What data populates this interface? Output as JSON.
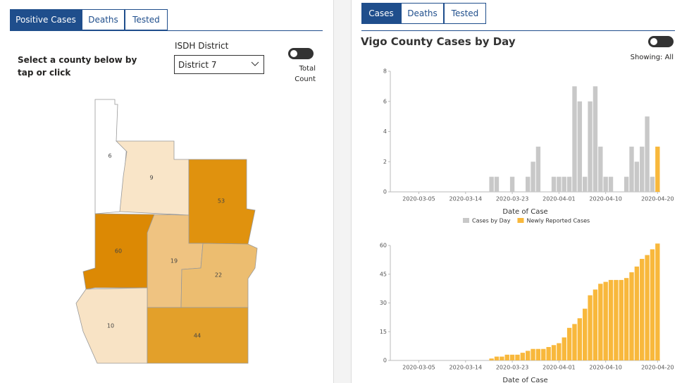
{
  "left_tabs": [
    "Positive Cases",
    "Deaths",
    "Tested"
  ],
  "prompt": "Select a county below by tap or click",
  "district_label": "ISDH District",
  "district_select": "District 7",
  "toggle_label": "Total Count",
  "map": {
    "counties": [
      {
        "value": 6,
        "color": "#ffffff"
      },
      {
        "value": 9,
        "color": "#f9e5c8"
      },
      {
        "value": 53,
        "color": "#e0920e"
      },
      {
        "value": 60,
        "color": "#dc8904"
      },
      {
        "value": 19,
        "color": "#efc381"
      },
      {
        "value": 22,
        "color": "#ecbd70"
      },
      {
        "value": 10,
        "color": "#f8e3c5"
      },
      {
        "value": 44,
        "color": "#e3a02a"
      }
    ]
  },
  "right_tabs": [
    "Cases",
    "Deaths",
    "Tested"
  ],
  "title": "Vigo County Cases by Day",
  "showing": "Showing: All",
  "chart_data": [
    {
      "type": "bar",
      "stacked": true,
      "x": [
        "2020-03-19",
        "2020-03-20",
        "2020-03-21",
        "2020-03-22",
        "2020-03-23",
        "2020-03-24",
        "2020-03-25",
        "2020-03-26",
        "2020-03-27",
        "2020-03-28",
        "2020-03-29",
        "2020-03-30",
        "2020-03-31",
        "2020-04-01",
        "2020-04-02",
        "2020-04-03",
        "2020-04-04",
        "2020-04-05",
        "2020-04-06",
        "2020-04-07",
        "2020-04-08",
        "2020-04-09",
        "2020-04-10",
        "2020-04-11",
        "2020-04-12",
        "2020-04-13",
        "2020-04-14",
        "2020-04-15",
        "2020-04-16",
        "2020-04-17",
        "2020-04-18",
        "2020-04-19",
        "2020-04-20"
      ],
      "series": [
        {
          "name": "Cases by Day",
          "color": "#c8c8c8",
          "values": [
            1,
            1,
            0,
            0,
            1,
            0,
            0,
            1,
            2,
            3,
            0,
            0,
            1,
            1,
            1,
            1,
            7,
            6,
            1,
            6,
            7,
            3,
            1,
            1,
            0,
            0,
            1,
            3,
            2,
            3,
            5,
            1,
            0
          ]
        },
        {
          "name": "Newly Reported Cases",
          "color": "#f8b83c",
          "values": [
            0,
            0,
            0,
            0,
            0,
            0,
            0,
            0,
            0,
            0,
            0,
            0,
            0,
            0,
            0,
            0,
            0,
            0,
            0,
            0,
            0,
            0,
            0,
            0,
            0,
            0,
            0,
            0,
            0,
            0,
            0,
            0,
            3
          ]
        }
      ],
      "xlim": [
        "2020-02-29",
        "2020-04-21"
      ],
      "xticks": [
        "2020-03-05",
        "2020-03-14",
        "2020-03-23",
        "2020-04-01",
        "2020-04-10",
        "2020-04-20"
      ],
      "ylim": [
        0,
        8
      ],
      "yticks": [
        0,
        2,
        4,
        6,
        8
      ],
      "xlabel": "Date of Case",
      "legend": "bottom"
    },
    {
      "type": "bar",
      "x": [
        "2020-03-19",
        "2020-03-20",
        "2020-03-21",
        "2020-03-22",
        "2020-03-23",
        "2020-03-24",
        "2020-03-25",
        "2020-03-26",
        "2020-03-27",
        "2020-03-28",
        "2020-03-29",
        "2020-03-30",
        "2020-03-31",
        "2020-04-01",
        "2020-04-02",
        "2020-04-03",
        "2020-04-04",
        "2020-04-05",
        "2020-04-06",
        "2020-04-07",
        "2020-04-08",
        "2020-04-09",
        "2020-04-10",
        "2020-04-11",
        "2020-04-12",
        "2020-04-13",
        "2020-04-14",
        "2020-04-15",
        "2020-04-16",
        "2020-04-17",
        "2020-04-18",
        "2020-04-19",
        "2020-04-20"
      ],
      "values": [
        1,
        2,
        2,
        3,
        3,
        3,
        4,
        5,
        6,
        6,
        6,
        7,
        8,
        9,
        12,
        17,
        19,
        22,
        27,
        34,
        37,
        40,
        41,
        42,
        42,
        42,
        43,
        46,
        49,
        53,
        55,
        58,
        61
      ],
      "color": "#f8b83c",
      "xlim": [
        "2020-02-29",
        "2020-04-21"
      ],
      "xticks": [
        "2020-03-05",
        "2020-03-14",
        "2020-03-23",
        "2020-04-01",
        "2020-04-10",
        "2020-04-20"
      ],
      "ylim": [
        0,
        60
      ],
      "yticks": [
        0,
        15,
        30,
        45,
        60
      ],
      "xlabel": "Date of Case"
    }
  ]
}
